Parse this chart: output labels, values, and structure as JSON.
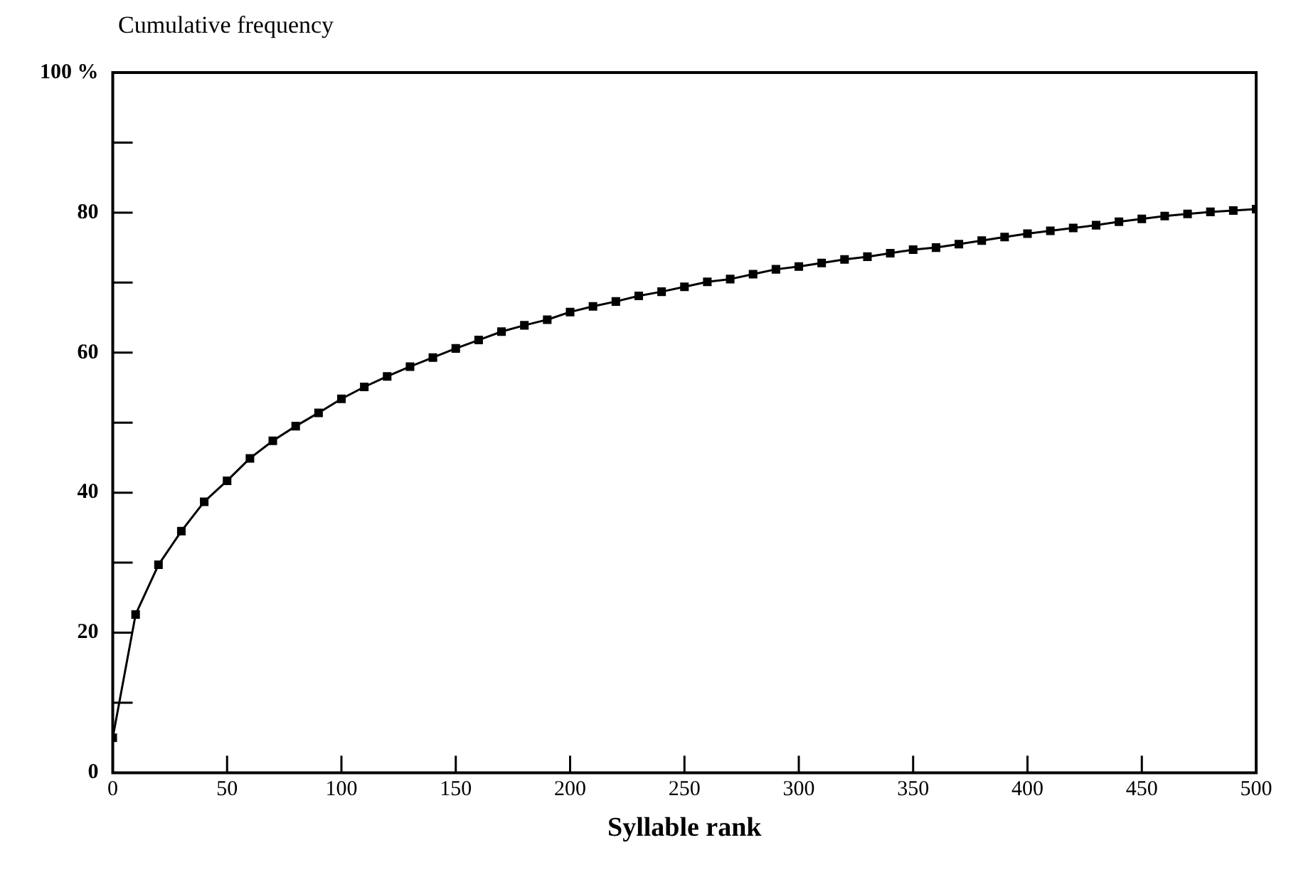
{
  "chart_data": {
    "type": "line",
    "ylabel": "Cumulative frequency",
    "xlabel": "Syllable rank",
    "x": [
      0,
      10,
      20,
      30,
      40,
      50,
      60,
      70,
      80,
      90,
      100,
      110,
      120,
      130,
      140,
      150,
      160,
      170,
      180,
      190,
      200,
      210,
      220,
      230,
      240,
      250,
      260,
      270,
      280,
      290,
      300,
      310,
      320,
      330,
      340,
      350,
      360,
      370,
      380,
      390,
      400,
      410,
      420,
      430,
      440,
      450,
      460,
      470,
      480,
      490,
      500
    ],
    "series": [
      {
        "color": "#000000",
        "values": [
          5.0,
          22.6,
          29.7,
          34.5,
          38.7,
          41.7,
          44.9,
          47.4,
          49.5,
          51.4,
          53.4,
          55.1,
          56.6,
          58.0,
          59.3,
          60.6,
          61.8,
          63.0,
          63.9,
          64.7,
          65.8,
          66.6,
          67.3,
          68.1,
          68.7,
          69.4,
          70.1,
          70.5,
          71.2,
          71.9,
          72.3,
          72.8,
          73.3,
          73.7,
          74.2,
          74.7,
          75.0,
          75.5,
          76.0,
          76.5,
          77.0,
          77.4,
          77.8,
          78.2,
          78.7,
          79.1,
          79.5,
          79.8,
          80.1,
          80.3,
          80.5
        ]
      }
    ],
    "xlim": [
      0,
      500
    ],
    "xticks": [
      0,
      50,
      100,
      150,
      200,
      250,
      300,
      350,
      400,
      450,
      500
    ],
    "ylim": [
      0,
      100
    ],
    "yticks": [
      0,
      {
        "value": 10,
        "label": null
      },
      20,
      {
        "value": 30,
        "label": null
      },
      40,
      {
        "value": 50,
        "label": null
      },
      60,
      {
        "value": 70,
        "label": null
      },
      80,
      {
        "value": 90,
        "label": null
      },
      {
        "value": 100,
        "label": "100 %"
      }
    ],
    "grid": false,
    "legend": false,
    "marker": "square",
    "line_style": "solid"
  }
}
